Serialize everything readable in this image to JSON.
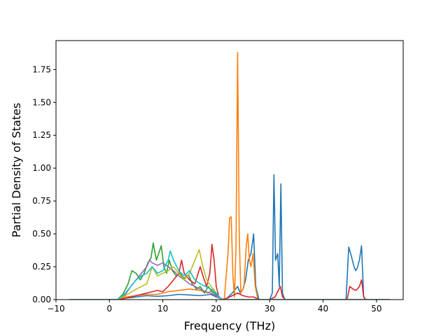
{
  "chart_data": {
    "type": "line",
    "title": "",
    "xlabel": "Frequency (THz)",
    "ylabel": "Partial Density of States",
    "xlim": [
      -10,
      55
    ],
    "ylim": [
      0,
      1.97
    ],
    "x_ticks": [
      -10,
      0,
      10,
      20,
      30,
      40,
      50
    ],
    "y_ticks": [
      0.0,
      0.25,
      0.5,
      0.75,
      1.0,
      1.25,
      1.5,
      1.75
    ],
    "x_tick_labels": [
      "−10",
      "0",
      "10",
      "20",
      "30",
      "40",
      "50"
    ],
    "y_tick_labels": [
      "0.00",
      "0.25",
      "0.50",
      "0.75",
      "1.00",
      "1.25",
      "1.50",
      "1.75"
    ],
    "grid": false,
    "legend": "none",
    "series": [
      {
        "color": "#1f77b4",
        "points": [
          [
            -7.5,
            0
          ],
          [
            1.5,
            0
          ],
          [
            3,
            0.01
          ],
          [
            5,
            0.02
          ],
          [
            7,
            0.03
          ],
          [
            9,
            0.025
          ],
          [
            11,
            0.03
          ],
          [
            13,
            0.04
          ],
          [
            15,
            0.035
          ],
          [
            17,
            0.03
          ],
          [
            19,
            0.04
          ],
          [
            20,
            0.02
          ],
          [
            21.5,
            0.0
          ],
          [
            22,
            0.01
          ],
          [
            23,
            0.05
          ],
          [
            24,
            0.1
          ],
          [
            24.5,
            0.05
          ],
          [
            25,
            0.08
          ],
          [
            25.5,
            0.15
          ],
          [
            26,
            0.3
          ],
          [
            26.5,
            0.35
          ],
          [
            27,
            0.5
          ],
          [
            27.4,
            0.1
          ],
          [
            28,
            0.0
          ],
          [
            30,
            0.0
          ],
          [
            30.5,
            0.05
          ],
          [
            30.8,
            0.95
          ],
          [
            31.1,
            0.3
          ],
          [
            31.5,
            0.35
          ],
          [
            31.8,
            0.1
          ],
          [
            32.1,
            0.88
          ],
          [
            32.4,
            0.05
          ],
          [
            32.8,
            0.0
          ],
          [
            44.3,
            0.0
          ],
          [
            44.8,
            0.4
          ],
          [
            45.3,
            0.33
          ],
          [
            45.8,
            0.25
          ],
          [
            46.1,
            0.22
          ],
          [
            46.4,
            0.24
          ],
          [
            46.8,
            0.3
          ],
          [
            47.2,
            0.41
          ],
          [
            47.6,
            0.02
          ],
          [
            48,
            0.0
          ],
          [
            52.5,
            0.0
          ]
        ]
      },
      {
        "color": "#ff7f0e",
        "points": [
          [
            -7.5,
            0
          ],
          [
            1.5,
            0
          ],
          [
            3,
            0.02
          ],
          [
            5,
            0.03
          ],
          [
            7,
            0.04
          ],
          [
            9,
            0.04
          ],
          [
            11,
            0.06
          ],
          [
            13,
            0.07
          ],
          [
            15,
            0.08
          ],
          [
            17,
            0.07
          ],
          [
            18.5,
            0.05
          ],
          [
            19.5,
            0.08
          ],
          [
            20.2,
            0.02
          ],
          [
            21.5,
            0.0
          ],
          [
            22.2,
            0.35
          ],
          [
            22.5,
            0.62
          ],
          [
            22.8,
            0.63
          ],
          [
            23.1,
            0.2
          ],
          [
            23.4,
            0.02
          ],
          [
            23.7,
            0.4
          ],
          [
            24.0,
            1.88
          ],
          [
            24.3,
            0.5
          ],
          [
            24.6,
            0.05
          ],
          [
            25.2,
            0.1
          ],
          [
            25.6,
            0.4
          ],
          [
            25.9,
            0.5
          ],
          [
            26.2,
            0.3
          ],
          [
            26.5,
            0.25
          ],
          [
            26.9,
            0.35
          ],
          [
            27.3,
            0.1
          ],
          [
            27.8,
            0.0
          ],
          [
            30,
            0.0
          ],
          [
            52.5,
            0.0
          ]
        ]
      },
      {
        "color": "#2ca02c",
        "points": [
          [
            -7.5,
            0
          ],
          [
            1.5,
            0
          ],
          [
            2.5,
            0.04
          ],
          [
            3.5,
            0.12
          ],
          [
            4.2,
            0.22
          ],
          [
            5,
            0.2
          ],
          [
            5.8,
            0.15
          ],
          [
            6.5,
            0.2
          ],
          [
            7.2,
            0.28
          ],
          [
            7.8,
            0.32
          ],
          [
            8.2,
            0.43
          ],
          [
            8.8,
            0.3
          ],
          [
            9.3,
            0.36
          ],
          [
            9.7,
            0.41
          ],
          [
            10.2,
            0.25
          ],
          [
            10.7,
            0.2
          ],
          [
            11.2,
            0.3
          ],
          [
            11.8,
            0.22
          ],
          [
            12.5,
            0.18
          ],
          [
            13.2,
            0.2
          ],
          [
            14,
            0.16
          ],
          [
            14.8,
            0.19
          ],
          [
            15.5,
            0.12
          ],
          [
            16.3,
            0.08
          ],
          [
            17,
            0.1
          ],
          [
            17.8,
            0.05
          ],
          [
            18.5,
            0.1
          ],
          [
            19.2,
            0.06
          ],
          [
            20,
            0.04
          ],
          [
            21,
            0.0
          ],
          [
            52.5,
            0.0
          ]
        ]
      },
      {
        "color": "#d62728",
        "points": [
          [
            -7.5,
            0
          ],
          [
            1.5,
            0
          ],
          [
            3,
            0.01
          ],
          [
            5,
            0.03
          ],
          [
            7,
            0.05
          ],
          [
            9,
            0.07
          ],
          [
            10,
            0.06
          ],
          [
            11,
            0.1
          ],
          [
            12,
            0.15
          ],
          [
            13,
            0.2
          ],
          [
            13.5,
            0.3
          ],
          [
            14,
            0.2
          ],
          [
            15,
            0.15
          ],
          [
            16,
            0.12
          ],
          [
            17,
            0.25
          ],
          [
            17.5,
            0.18
          ],
          [
            18.2,
            0.1
          ],
          [
            18.8,
            0.2
          ],
          [
            19.2,
            0.42
          ],
          [
            19.6,
            0.3
          ],
          [
            20,
            0.1
          ],
          [
            20.5,
            0.02
          ],
          [
            21,
            0.0
          ],
          [
            22,
            0.01
          ],
          [
            23,
            0.03
          ],
          [
            24,
            0.05
          ],
          [
            25,
            0.03
          ],
          [
            26,
            0.02
          ],
          [
            27,
            0.02
          ],
          [
            28,
            0.0
          ],
          [
            30,
            0.0
          ],
          [
            31,
            0.02
          ],
          [
            32,
            0.1
          ],
          [
            32.4,
            0.02
          ],
          [
            33,
            0.0
          ],
          [
            44.5,
            0.0
          ],
          [
            45,
            0.1
          ],
          [
            45.6,
            0.08
          ],
          [
            46.2,
            0.07
          ],
          [
            46.8,
            0.1
          ],
          [
            47.2,
            0.15
          ],
          [
            47.6,
            0.02
          ],
          [
            48,
            0.0
          ],
          [
            52.5,
            0.0
          ]
        ]
      },
      {
        "color": "#9467bd",
        "points": [
          [
            -7.5,
            0
          ],
          [
            1.5,
            0
          ],
          [
            3,
            0.04
          ],
          [
            4,
            0.1
          ],
          [
            5,
            0.15
          ],
          [
            6,
            0.2
          ],
          [
            7,
            0.25
          ],
          [
            7.5,
            0.3
          ],
          [
            8,
            0.28
          ],
          [
            9,
            0.26
          ],
          [
            10,
            0.28
          ],
          [
            11,
            0.25
          ],
          [
            12,
            0.22
          ],
          [
            13,
            0.18
          ],
          [
            14,
            0.15
          ],
          [
            15,
            0.12
          ],
          [
            16,
            0.1
          ],
          [
            17,
            0.08
          ],
          [
            18,
            0.06
          ],
          [
            19,
            0.05
          ],
          [
            20,
            0.03
          ],
          [
            21,
            0.0
          ],
          [
            52.5,
            0.0
          ]
        ]
      },
      {
        "color": "#bcbd22",
        "points": [
          [
            -7.5,
            0
          ],
          [
            1.5,
            0
          ],
          [
            3,
            0.03
          ],
          [
            5,
            0.08
          ],
          [
            7,
            0.12
          ],
          [
            8,
            0.25
          ],
          [
            9,
            0.18
          ],
          [
            10,
            0.2
          ],
          [
            11,
            0.22
          ],
          [
            12,
            0.25
          ],
          [
            13,
            0.2
          ],
          [
            14,
            0.15
          ],
          [
            15,
            0.2
          ],
          [
            16,
            0.3
          ],
          [
            16.8,
            0.38
          ],
          [
            17.5,
            0.25
          ],
          [
            18.2,
            0.15
          ],
          [
            19,
            0.1
          ],
          [
            20,
            0.05
          ],
          [
            21,
            0.0
          ],
          [
            52.5,
            0.0
          ]
        ]
      },
      {
        "color": "#17becf",
        "points": [
          [
            -7.5,
            0
          ],
          [
            1.5,
            0
          ],
          [
            3,
            0.05
          ],
          [
            4,
            0.1
          ],
          [
            5,
            0.15
          ],
          [
            6,
            0.18
          ],
          [
            7,
            0.2
          ],
          [
            8,
            0.25
          ],
          [
            9,
            0.2
          ],
          [
            10,
            0.22
          ],
          [
            11,
            0.3
          ],
          [
            11.4,
            0.37
          ],
          [
            12,
            0.3
          ],
          [
            13,
            0.22
          ],
          [
            14,
            0.18
          ],
          [
            15,
            0.22
          ],
          [
            16,
            0.15
          ],
          [
            17,
            0.12
          ],
          [
            18,
            0.1
          ],
          [
            19,
            0.08
          ],
          [
            20,
            0.05
          ],
          [
            21,
            0.0
          ],
          [
            52.5,
            0.0
          ]
        ]
      }
    ]
  }
}
